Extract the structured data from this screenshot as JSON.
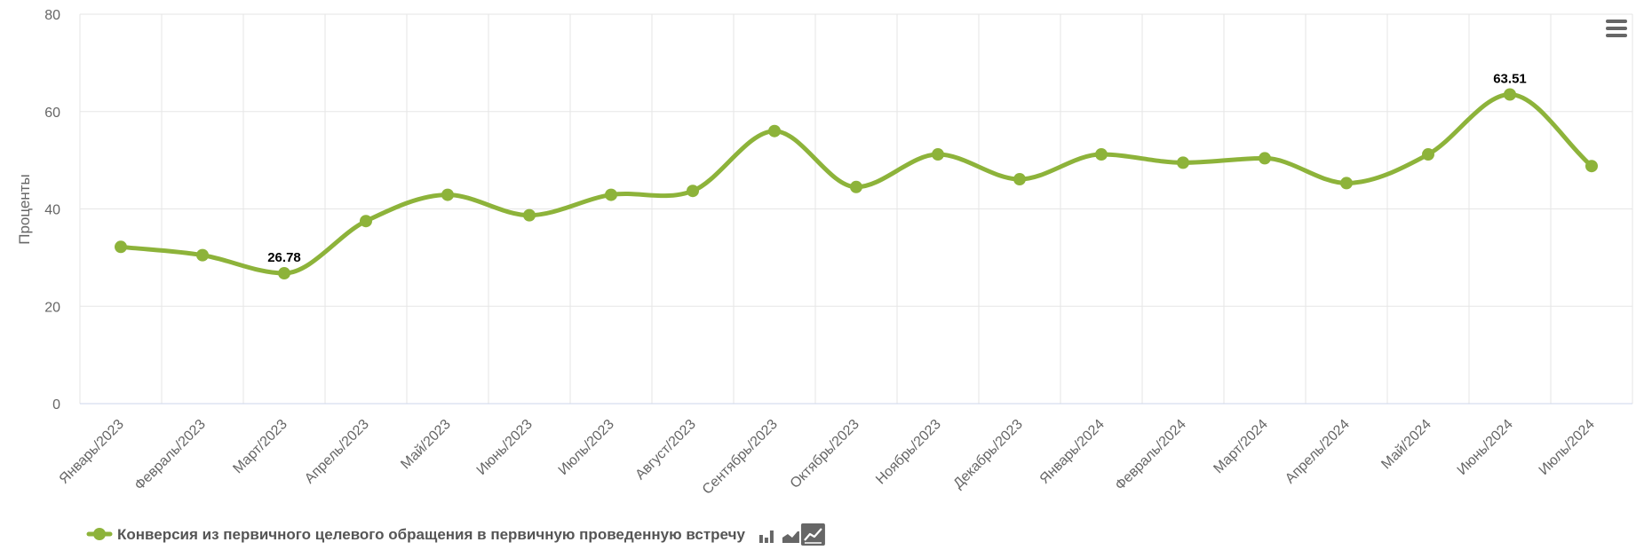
{
  "chart_data": {
    "type": "line",
    "ylabel": "Проценты",
    "ylim": [
      0,
      80
    ],
    "y_ticks": [
      0,
      20,
      40,
      60,
      80
    ],
    "grid": true,
    "legend_position": "bottom-left",
    "categories": [
      "Январь/2023",
      "Февраль/2023",
      "Март/2023",
      "Апрель/2023",
      "Май/2023",
      "Июнь/2023",
      "Июль/2023",
      "Август/2023",
      "Сентябрь/2023",
      "Октябрь/2023",
      "Ноябрь/2023",
      "Декабрь/2023",
      "Январь/2024",
      "Февраль/2024",
      "Март/2024",
      "Апрель/2024",
      "Май/2024",
      "Июнь/2024",
      "Июль/2024"
    ],
    "series": [
      {
        "name": "Конверсия из первичного целевого обращения в первичную проведенную встречу",
        "color": "#8db33a",
        "values": [
          32.2,
          30.5,
          26.78,
          37.5,
          42.9,
          38.7,
          42.9,
          43.7,
          56.0,
          44.5,
          51.2,
          46.1,
          51.2,
          49.5,
          50.4,
          45.3,
          51.2,
          63.51,
          48.8
        ],
        "data_labels": [
          {
            "index": 2,
            "text": "26.78"
          },
          {
            "index": 17,
            "text": "63.51"
          }
        ]
      }
    ]
  },
  "icons": {
    "menu": "hamburger-menu-icon",
    "legend_marker": "line-marker-icon",
    "chart_types": [
      "bar-chart-icon",
      "area-chart-icon",
      "line-chart-icon"
    ],
    "active_chart_type": "line-chart-icon"
  },
  "colors": {
    "series": "#8db33a",
    "grid": "#e6e6e6",
    "axis": "#ccd6eb",
    "text": "#666666",
    "active_icon_bg": "#666666"
  }
}
